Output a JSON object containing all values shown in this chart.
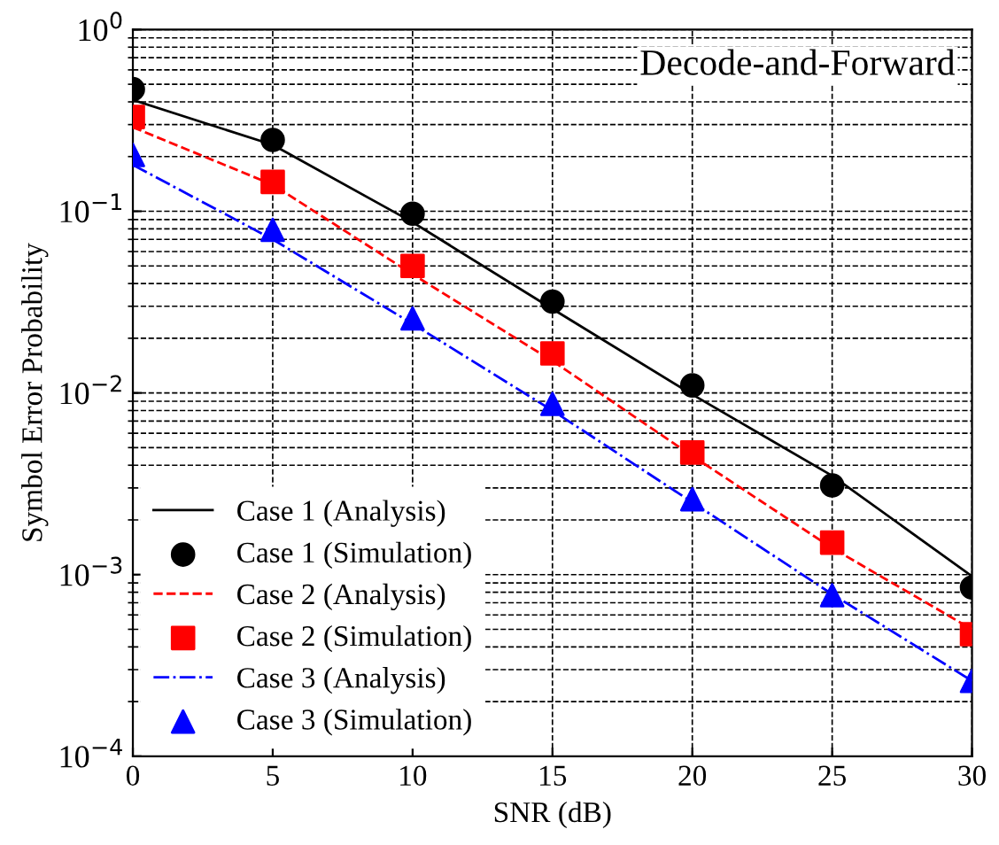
{
  "chart_data": {
    "type": "line",
    "xlabel": "SNR (dB)",
    "ylabel": "Symbol Error Probability",
    "annotations": [
      "Decode-and-Forward"
    ],
    "x": [
      0,
      5,
      10,
      15,
      20,
      25,
      30
    ],
    "series": [
      {
        "name": "Case 1 (Analysis)",
        "color": "#000000",
        "line_style": "solid",
        "marker": "none",
        "values": [
          0.41,
          0.232,
          0.087,
          0.029,
          0.0098,
          0.0035,
          0.00098
        ]
      },
      {
        "name": "Case 1 (Simulation)",
        "type": "scatter",
        "color": "#000000",
        "marker": "circle",
        "values": [
          0.47,
          0.247,
          0.097,
          0.0318,
          0.011,
          0.0031,
          0.00085
        ]
      },
      {
        "name": "Case 2 (Analysis)",
        "color": "#ff0000",
        "line_style": "dashed",
        "marker": "none",
        "values": [
          0.29,
          0.14,
          0.045,
          0.015,
          0.0045,
          0.0014,
          0.0005
        ]
      },
      {
        "name": "Case 2 (Simulation)",
        "type": "scatter",
        "color": "#ff0000",
        "marker": "square",
        "values": [
          0.33,
          0.145,
          0.05,
          0.0165,
          0.0047,
          0.0015,
          0.00047
        ]
      },
      {
        "name": "Case 3 (Analysis)",
        "color": "#0000ff",
        "line_style": "dashdot",
        "marker": "none",
        "values": [
          0.18,
          0.07,
          0.024,
          0.008,
          0.0025,
          0.00078,
          0.00026
        ]
      },
      {
        "name": "Case 3 (Simulation)",
        "type": "scatter",
        "color": "#0000ff",
        "marker": "triangle",
        "values": [
          0.204,
          0.079,
          0.0257,
          0.0087,
          0.0026,
          0.00077,
          0.00026
        ]
      }
    ],
    "log": "y",
    "xlim": [
      0,
      30
    ],
    "xticks": [
      0,
      5,
      10,
      15,
      20,
      25,
      30
    ],
    "ylim": [
      0.0001,
      1
    ],
    "yticks": [
      {
        "value": 0.0001,
        "label": "10$^{−4}$"
      },
      {
        "value": 0.001,
        "label": "10$^{−3}$"
      },
      {
        "value": 0.01,
        "label": "10$^{−2}$"
      },
      {
        "value": 0.1,
        "label": "10$^{−1}$"
      },
      {
        "value": 1,
        "label": "10$^{0}$"
      }
    ],
    "grid": true,
    "legend": "bottom left"
  }
}
